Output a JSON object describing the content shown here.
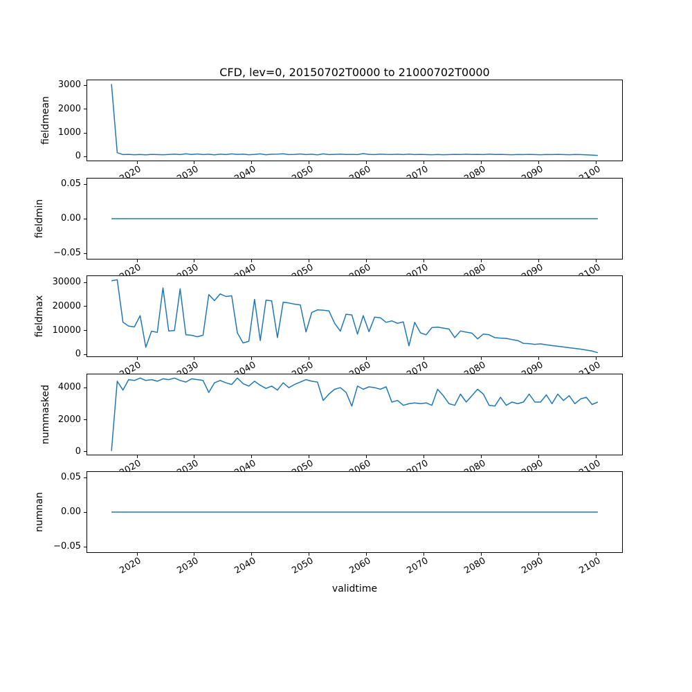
{
  "accent_color": "#1f77b4",
  "chart_data": {
    "type": "line",
    "title": "CFD, lev=0, 20150702T0000 to 21000702T0000",
    "xlabel": "validtime",
    "legend": "none",
    "grid": false,
    "x_start": 2015.5,
    "x_step": 1,
    "n_points": 86,
    "xlim": [
      2011.25,
      2104.75
    ],
    "xticks": [
      2020,
      2030,
      2040,
      2050,
      2060,
      2070,
      2080,
      2090,
      2100
    ],
    "xtick_labels": [
      "2020",
      "2030",
      "2040",
      "2050",
      "2060",
      "2070",
      "2080",
      "2090",
      "2100"
    ],
    "subplots": [
      {
        "ylabel": "fieldmean",
        "ylim": [
          -160,
          3210
        ],
        "yticks": [
          0,
          1000,
          2000,
          3000
        ],
        "ytick_labels": [
          "0",
          "1000",
          "2000",
          "3000"
        ],
        "values": [
          3050,
          170,
          90,
          100,
          85,
          95,
          80,
          100,
          90,
          85,
          95,
          110,
          90,
          125,
          95,
          115,
          90,
          105,
          80,
          110,
          90,
          120,
          100,
          110,
          85,
          100,
          120,
          85,
          105,
          110,
          125,
          90,
          100,
          115,
          90,
          105,
          80,
          120,
          90,
          100,
          110,
          95,
          100,
          90,
          130,
          100,
          90,
          110,
          100,
          95,
          105,
          90,
          110,
          90,
          100,
          90,
          85,
          95,
          85,
          90,
          100,
          95,
          105,
          95,
          100,
          90,
          110,
          95,
          100,
          90,
          85,
          95,
          90,
          100,
          90,
          85,
          95,
          90,
          100,
          90,
          85,
          95,
          90,
          80,
          70,
          55
        ]
      },
      {
        "ylabel": "fieldmin",
        "ylim": [
          -0.058,
          0.058
        ],
        "yticks": [
          -0.05,
          0,
          0.05
        ],
        "ytick_labels": [
          "−0.05",
          "0.00",
          "0.05"
        ],
        "constant": 0
      },
      {
        "ylabel": "fieldmax",
        "ylim": [
          -825,
          32725
        ],
        "yticks": [
          0,
          10000,
          20000,
          30000
        ],
        "ytick_labels": [
          "0",
          "10000",
          "20000",
          "30000"
        ],
        "values": [
          30800,
          31200,
          13500,
          11800,
          11500,
          16200,
          3000,
          9700,
          9200,
          27800,
          9800,
          10000,
          27400,
          8200,
          8000,
          7400,
          8000,
          25000,
          22500,
          25300,
          24200,
          24500,
          9000,
          4800,
          5500,
          23000,
          5800,
          22700,
          22400,
          7000,
          21800,
          21500,
          21000,
          20700,
          9400,
          17500,
          18600,
          18500,
          18200,
          13000,
          9700,
          16800,
          16500,
          8500,
          16200,
          9500,
          15600,
          15300,
          13400,
          14000,
          13000,
          13600,
          3600,
          13400,
          9000,
          8200,
          11200,
          11400,
          11000,
          10600,
          7000,
          9800,
          9300,
          8900,
          6500,
          8500,
          8200,
          7000,
          6800,
          6700,
          6200,
          5800,
          4600,
          4500,
          4200,
          4400,
          4000,
          3700,
          3400,
          3100,
          2800,
          2500,
          2200,
          1800,
          1400,
          700
        ]
      },
      {
        "ylabel": "nummasked",
        "ylim": [
          -178,
          4828
        ],
        "yticks": [
          0,
          2000,
          4000
        ],
        "ytick_labels": [
          "0",
          "2000",
          "4000"
        ],
        "values": [
          50,
          4400,
          3850,
          4500,
          4450,
          4600,
          4450,
          4500,
          4400,
          4550,
          4500,
          4600,
          4450,
          4350,
          4550,
          4500,
          4450,
          3700,
          4300,
          4450,
          4300,
          4200,
          4600,
          4250,
          4100,
          4400,
          4150,
          3950,
          4100,
          3850,
          4300,
          4000,
          4200,
          4350,
          4500,
          4400,
          4350,
          3200,
          3600,
          3900,
          4000,
          3700,
          2850,
          4100,
          3900,
          4050,
          4000,
          3900,
          4050,
          3100,
          3200,
          2900,
          3000,
          3050,
          3000,
          3050,
          2900,
          3900,
          3500,
          3000,
          2900,
          3600,
          3100,
          3500,
          3900,
          3600,
          2900,
          2850,
          3400,
          2900,
          3100,
          3000,
          3100,
          3600,
          3100,
          3100,
          3550,
          3000,
          3600,
          3200,
          3500,
          3000,
          3300,
          3400,
          2950,
          3100
        ]
      },
      {
        "ylabel": "numnan",
        "ylim": [
          -0.058,
          0.058
        ],
        "yticks": [
          -0.05,
          0,
          0.05
        ],
        "ytick_labels": [
          "−0.05",
          "0.00",
          "0.05"
        ],
        "constant": 0
      }
    ]
  }
}
